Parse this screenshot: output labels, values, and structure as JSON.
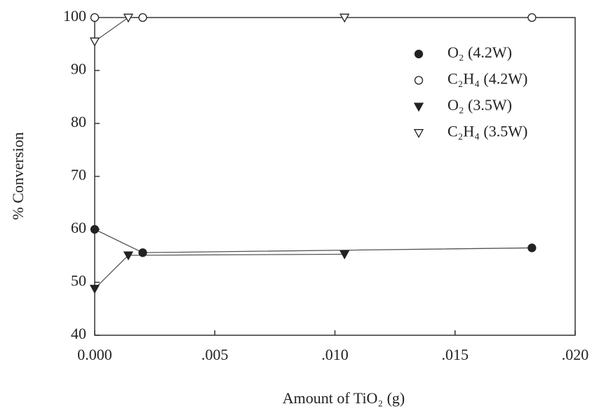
{
  "chart_data": {
    "type": "line",
    "x_label": "Amount of TiO₂ (g)",
    "y_label": "% Conversion",
    "xlim": [
      0,
      0.02
    ],
    "xticks": [
      {
        "value": 0,
        "label": "0.000"
      },
      {
        "value": 0.005,
        "label": ".005"
      },
      {
        "value": 0.01,
        "label": ".010"
      },
      {
        "value": 0.015,
        "label": ".015"
      },
      {
        "value": 0.02,
        "label": ".020"
      }
    ],
    "ylim": [
      40,
      100
    ],
    "yticks": [
      40,
      50,
      60,
      70,
      80,
      90,
      100
    ],
    "series": [
      {
        "name": "O₂ (4.2W)",
        "color": "#222222",
        "marker": "circle",
        "filled": true,
        "x": [
          0,
          0.002,
          0.0182
        ],
        "values": [
          60,
          55.6,
          56.5
        ]
      },
      {
        "name": "C₂H₄ (4.2W)",
        "color": "#222222",
        "marker": "circle",
        "filled": false,
        "x": [
          0,
          0.002,
          0.0182
        ],
        "values": [
          100,
          100,
          100
        ]
      },
      {
        "name": "O₂ (3.5W)",
        "color": "#222222",
        "marker": "triangle-down",
        "filled": true,
        "x": [
          0,
          0.0014,
          0.0104
        ],
        "values": [
          48.8,
          55.1,
          55.3
        ]
      },
      {
        "name": "C₂H₄ (3.5W)",
        "color": "#222222",
        "marker": "triangle-down",
        "filled": false,
        "x": [
          0,
          0.0014,
          0.0104
        ],
        "values": [
          95.5,
          100,
          100
        ]
      }
    ]
  }
}
